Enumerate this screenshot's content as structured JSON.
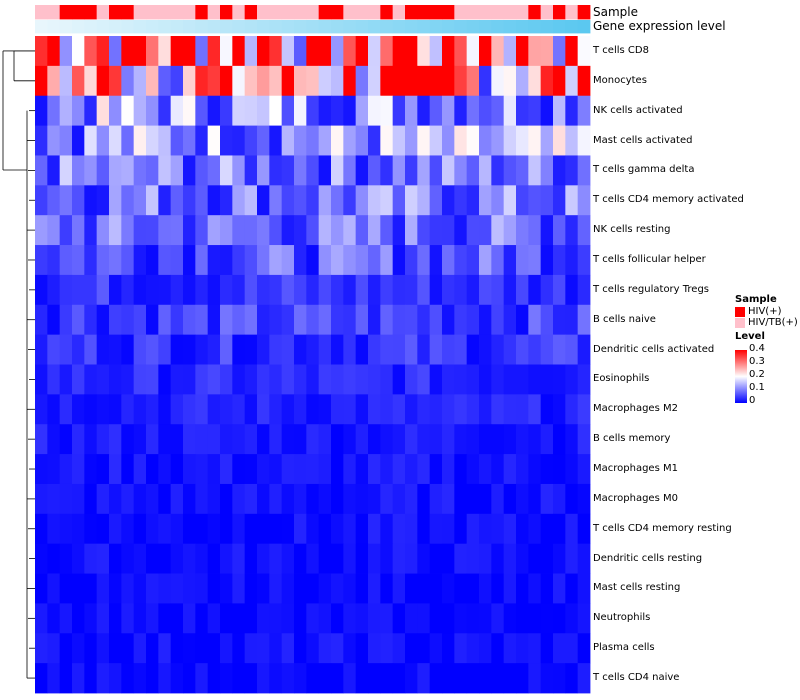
{
  "chart_data": {
    "type": "heatmap",
    "annotation_labels": [
      "Sample",
      "Gene expression level"
    ],
    "rows": [
      "T cells CD8",
      "Monocytes",
      "NK cells activated",
      "Mast cells activated",
      "T cells gamma delta",
      "T cells CD4 memory activated",
      "NK cells resting",
      "T cells follicular helper",
      "T cells regulatory  Tregs",
      "B cells naive",
      "Dendritic cells activated",
      "Eosinophils",
      "Macrophages M2",
      "B cells memory",
      "Macrophages M1",
      "Macrophages M0",
      "T cells CD4 memory resting",
      "Dendritic cells resting",
      "Mast cells resting",
      "Neutrophils",
      "Plasma cells",
      "T cells CD4 naive"
    ],
    "row_levels": [
      0.37,
      0.28,
      0.12,
      0.12,
      0.09,
      0.09,
      0.08,
      0.07,
      0.04,
      0.05,
      0.04,
      0.03,
      0.025,
      0.02,
      0.015,
      0.012,
      0.01,
      0.01,
      0.005,
      0.004,
      0.01,
      0.005
    ],
    "n_samples": 45,
    "sample_groups": [
      1,
      1,
      0,
      0,
      0,
      1,
      0,
      0,
      1,
      1,
      1,
      1,
      1,
      0,
      1,
      0,
      1,
      0,
      1,
      1,
      1,
      1,
      1,
      0,
      0,
      1,
      1,
      1,
      0,
      1,
      0,
      0,
      0,
      0,
      1,
      1,
      1,
      1,
      1,
      1,
      0,
      1,
      0,
      1,
      0
    ],
    "legend": {
      "sample_title": "Sample",
      "groups": [
        {
          "label": "HIV(+)",
          "color": "#ff0000"
        },
        {
          "label": "HIV/TB(+)",
          "color": "#ffc0cb"
        }
      ],
      "level_title": "Level",
      "level_ticks": [
        "0.4",
        "0.3",
        "0.2",
        "0.1",
        "0"
      ],
      "level_range": [
        0,
        0.4
      ],
      "colors": {
        "low": "#0000ff",
        "mid": "#ffffff",
        "high": "#ff0000"
      }
    },
    "gradient_colors": [
      "#e8f6fc",
      "#5bc8f0"
    ]
  }
}
